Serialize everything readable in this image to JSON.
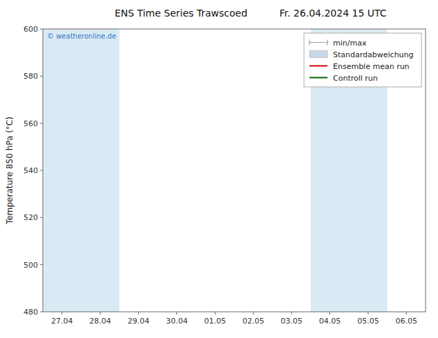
{
  "chart_data": {
    "type": "line",
    "title": "ENS Time Series Trawscoed",
    "subtitle": "Fr. 26.04.2024 15 UTC",
    "y_label": "Temperature 850 hPa (°C)",
    "categories": [
      "27.04",
      "28.04",
      "29.04",
      "30.04",
      "01.05",
      "02.05",
      "03.05",
      "04.05",
      "05.05",
      "06.05"
    ],
    "series": [
      {
        "name": "min/max",
        "type": "range",
        "color": "#a0a0a0",
        "values": [
          null,
          null,
          null,
          null,
          null,
          null,
          null,
          null,
          null,
          null
        ]
      },
      {
        "name": "Standardabweichung",
        "type": "band",
        "color": "#c8d8e8",
        "values": [
          null,
          null,
          null,
          null,
          null,
          null,
          null,
          null,
          null,
          null
        ]
      },
      {
        "name": "Ensemble mean run",
        "type": "line",
        "color": "#cc0000",
        "values": [
          null,
          null,
          null,
          null,
          null,
          null,
          null,
          null,
          null,
          null
        ]
      },
      {
        "name": "Controll run",
        "type": "line",
        "color": "#006600",
        "values": [
          null,
          null,
          null,
          null,
          null,
          null,
          null,
          null,
          null,
          null
        ]
      }
    ],
    "shaded": {
      "color": "#daeaf5",
      "spans": [
        {
          "start": "27.04",
          "end": "28.04"
        },
        {
          "start": "04.05",
          "end": "05.05"
        }
      ]
    },
    "annotations": [
      {
        "text": "© weatheronline.de",
        "color": "#3377bb"
      }
    ],
    "ylim": [
      480,
      600
    ],
    "yticks": [
      480,
      500,
      520,
      540,
      560,
      580,
      600
    ],
    "grid": false,
    "legend": "upper right"
  }
}
